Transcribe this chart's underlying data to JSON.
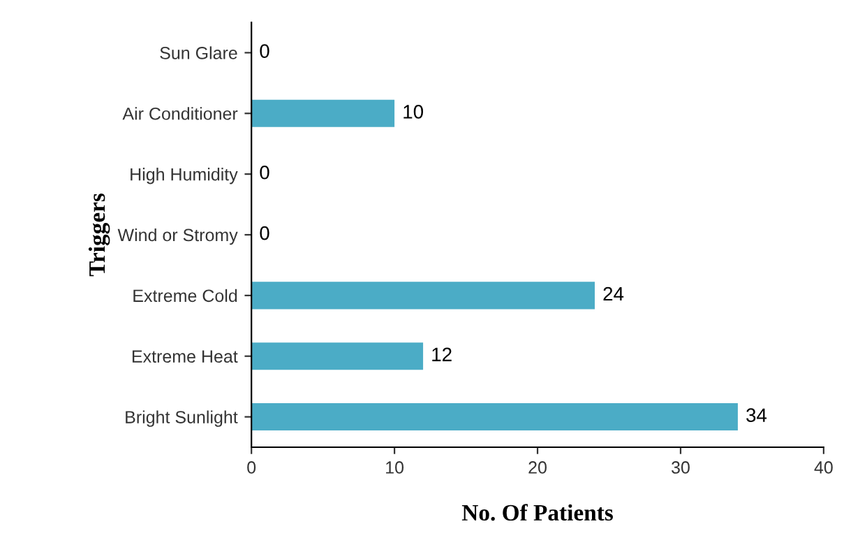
{
  "chart_data": {
    "type": "bar",
    "orientation": "horizontal",
    "xlabel": "No. Of Patients",
    "ylabel": "Triggers",
    "categories": [
      "Sun Glare",
      "Air Conditioner",
      "High Humidity",
      "Wind or Stromy",
      "Extreme Cold",
      "Extreme Heat",
      "Bright Sunlight"
    ],
    "values": [
      0,
      10,
      0,
      0,
      24,
      12,
      34
    ],
    "color": "#4bacc6",
    "xlim": [
      0,
      40
    ],
    "xticks": [
      0,
      10,
      20,
      30,
      40
    ],
    "data_labels": true,
    "grid": false,
    "legend": false
  }
}
